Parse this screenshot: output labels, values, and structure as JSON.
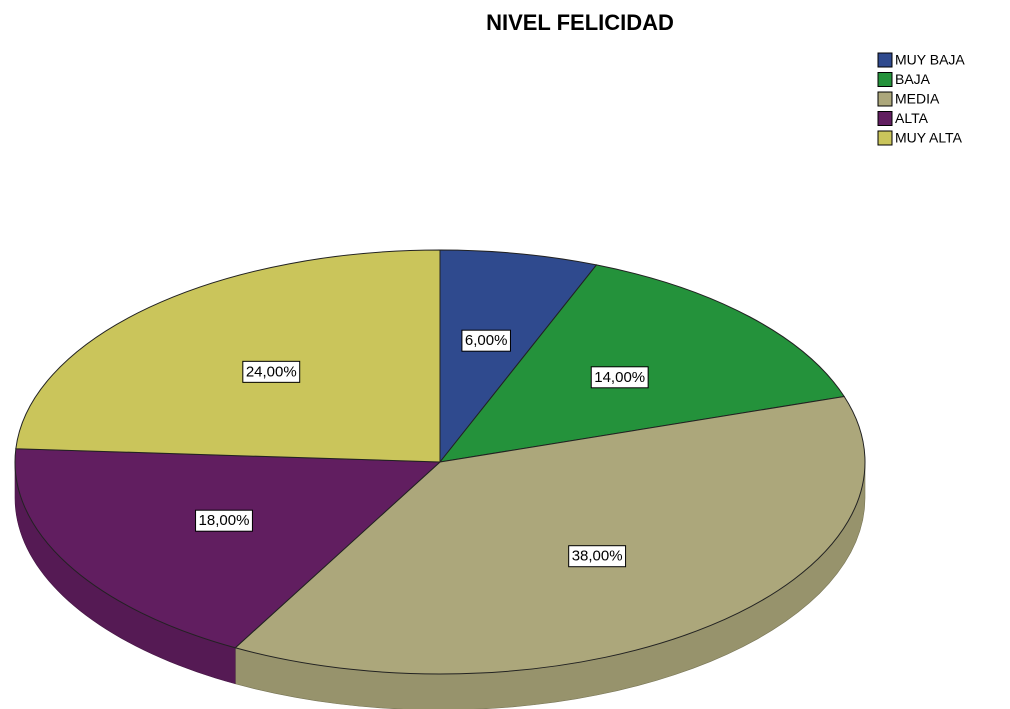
{
  "chart_data": {
    "type": "pie",
    "title": "NIVEL FELICIDAD",
    "categories": [
      "MUY BAJA",
      "BAJA",
      "MEDIA",
      "ALTA",
      "MUY ALTA"
    ],
    "values": [
      6,
      14,
      38,
      18,
      24
    ],
    "value_labels": [
      "6,00%",
      "14,00%",
      "38,00%",
      "18,00%",
      "24,00%"
    ],
    "colors": [
      "#2f4a8e",
      "#24923b",
      "#aca77b",
      "#611e60",
      "#cac55b"
    ],
    "legend": "top-right"
  }
}
